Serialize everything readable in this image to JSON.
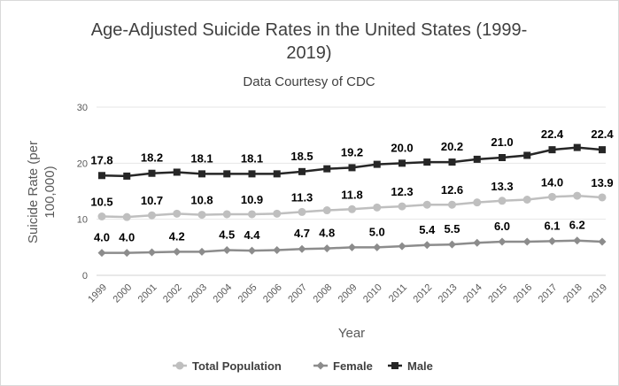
{
  "chart_data": {
    "type": "line",
    "title_line1": "Age-Adjusted Suicide Rates in the United States (1999-",
    "title_line2": "2019)",
    "subtitle": "Data Courtesy of CDC",
    "xlabel": "Year",
    "ylabel_line1": "Suicide Rate (per",
    "ylabel_line2": "100,000)",
    "ylim": [
      0,
      30
    ],
    "yticks": [
      "0",
      "10",
      "20",
      "30"
    ],
    "grid": true,
    "legend_position": "bottom",
    "x": [
      "1999",
      "2000",
      "2001",
      "2002",
      "2003",
      "2004",
      "2005",
      "2006",
      "2007",
      "2008",
      "2009",
      "2010",
      "2011",
      "2012",
      "2013",
      "2014",
      "2015",
      "2016",
      "2017",
      "2018",
      "2019"
    ],
    "series": [
      {
        "name": "Total Population",
        "color": "#bfbfbf",
        "marker": "circle",
        "values": [
          10.5,
          10.4,
          10.7,
          11.0,
          10.8,
          10.9,
          10.9,
          11.0,
          11.3,
          11.6,
          11.8,
          12.1,
          12.3,
          12.6,
          12.6,
          13.0,
          13.3,
          13.5,
          14.0,
          14.2,
          13.9
        ],
        "labels": [
          "10.5",
          "",
          "10.7",
          "",
          "10.8",
          "",
          "10.9",
          "",
          "11.3",
          "",
          "11.8",
          "",
          "12.3",
          "",
          "12.6",
          "",
          "13.3",
          "",
          "14.0",
          "",
          "13.9"
        ]
      },
      {
        "name": "Female",
        "color": "#8c8c8c",
        "marker": "diamond",
        "values": [
          4.0,
          4.0,
          4.1,
          4.2,
          4.2,
          4.5,
          4.4,
          4.5,
          4.7,
          4.8,
          5.0,
          5.0,
          5.2,
          5.4,
          5.5,
          5.8,
          6.0,
          6.0,
          6.1,
          6.2,
          6.0
        ],
        "labels": [
          "4.0",
          "4.0",
          "",
          "4.2",
          "",
          "4.5",
          "4.4",
          "",
          "4.7",
          "4.8",
          "",
          "5.0",
          "",
          "5.4",
          "5.5",
          "",
          "6.0",
          "",
          "6.1",
          "6.2",
          ""
        ]
      },
      {
        "name": "Male",
        "color": "#262626",
        "marker": "square",
        "values": [
          17.8,
          17.7,
          18.2,
          18.4,
          18.1,
          18.1,
          18.1,
          18.1,
          18.5,
          19.0,
          19.2,
          19.8,
          20.0,
          20.2,
          20.2,
          20.7,
          21.0,
          21.4,
          22.4,
          22.8,
          22.4
        ],
        "labels": [
          "17.8",
          "",
          "18.2",
          "",
          "18.1",
          "",
          "18.1",
          "",
          "18.5",
          "",
          "19.2",
          "",
          "20.0",
          "",
          "20.2",
          "",
          "21.0",
          "",
          "22.4",
          "",
          "22.4"
        ]
      }
    ]
  }
}
